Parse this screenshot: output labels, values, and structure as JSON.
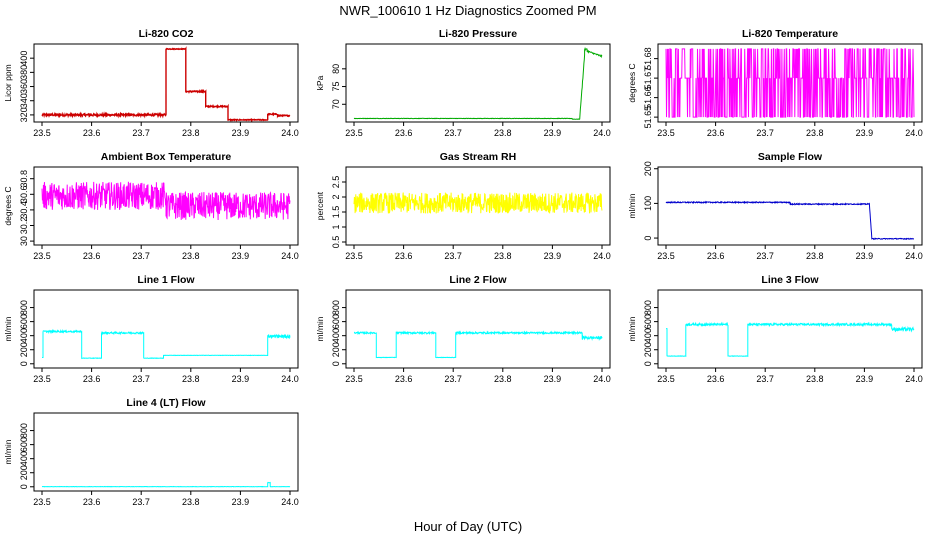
{
  "title": "NWR_100610  1 Hz Diagnostics Zoomed PM",
  "xlabel": "Hour of Day (UTC)",
  "chart_data": [
    {
      "type": "line",
      "id": "co2",
      "color": "#cc0000",
      "title": "Li-820 CO2",
      "ylabel": "Licor ppm",
      "xlim": [
        23.5,
        24.0
      ],
      "ylim": [
        310,
        420
      ],
      "xticks": [
        "23.5",
        "23.6",
        "23.7",
        "23.8",
        "23.9",
        "24.0"
      ],
      "yticks": [
        320,
        340,
        360,
        380,
        400
      ],
      "segments": [
        {
          "x0": 23.5,
          "x1": 23.75,
          "y": 320,
          "noise": 1.5
        },
        {
          "x0": 23.75,
          "x1": 23.79,
          "y": 413,
          "noise": 0.5
        },
        {
          "x0": 23.79,
          "x1": 23.83,
          "y": 353,
          "noise": 1
        },
        {
          "x0": 23.83,
          "x1": 23.875,
          "y": 332,
          "noise": 0.8
        },
        {
          "x0": 23.875,
          "x1": 23.955,
          "y": 313,
          "noise": 0.6
        },
        {
          "x0": 23.955,
          "x1": 23.975,
          "y": 321,
          "noise": 0.8
        },
        {
          "x0": 23.975,
          "x1": 24.0,
          "y": 319,
          "noise": 0.8
        }
      ]
    },
    {
      "type": "line",
      "id": "pressure",
      "color": "#00aa00",
      "title": "Li-820 Pressure",
      "ylabel": "kPa",
      "xlim": [
        23.5,
        24.0
      ],
      "ylim": [
        65,
        87
      ],
      "xticks": [
        "23.5",
        "23.6",
        "23.7",
        "23.8",
        "23.9",
        "24.0"
      ],
      "yticks": [
        70,
        75,
        80
      ],
      "segments": [
        {
          "x0": 23.5,
          "x1": 23.94,
          "y": 66,
          "noise": 0.05
        },
        {
          "x0": 23.94,
          "x1": 23.955,
          "y": 65.8,
          "noise": 0.05
        },
        {
          "x0": 23.955,
          "x1": 23.965,
          "y0": 66,
          "y1": 84,
          "noise": 0.3
        },
        {
          "x0": 23.965,
          "x1": 23.97,
          "y": 85.5,
          "noise": 0.2
        },
        {
          "x0": 23.97,
          "x1": 24.0,
          "y0": 85,
          "y1": 83.5,
          "noise": 0.2
        }
      ]
    },
    {
      "type": "line",
      "id": "licor_temp",
      "color": "#ff00ff",
      "title": "Li-820 Temperature",
      "ylabel": "degrees C",
      "xlim": [
        23.5,
        24.0
      ],
      "ylim": [
        51.6475,
        51.6875
      ],
      "xticks": [
        "23.5",
        "23.6",
        "23.7",
        "23.8",
        "23.9",
        "24.0"
      ],
      "yticks": [
        51.65,
        51.66,
        51.67,
        51.68
      ],
      "levels": [
        51.65,
        51.67,
        51.685
      ]
    },
    {
      "type": "line",
      "id": "box_temp",
      "color": "#ff00ff",
      "title": "Ambient Box Temperature",
      "ylabel": "degrees C",
      "xlim": [
        23.5,
        24.0
      ],
      "ylim": [
        29.95,
        30.95
      ],
      "xticks": [
        "23.5",
        "23.6",
        "23.7",
        "23.8",
        "23.9",
        "24.0"
      ],
      "yticks": [
        30.0,
        30.2,
        30.4,
        30.6,
        30.8
      ],
      "segments": [
        {
          "x0": 23.5,
          "x1": 23.75,
          "y": 30.58,
          "noise": 0.18
        },
        {
          "x0": 23.75,
          "x1": 24.0,
          "y": 30.45,
          "noise": 0.18
        }
      ]
    },
    {
      "type": "line",
      "id": "rh",
      "color": "#ffff00",
      "title": "Gas Stream RH",
      "ylabel": "percent",
      "xlim": [
        23.5,
        24.0
      ],
      "ylim": [
        0.4,
        3.0
      ],
      "xticks": [
        "23.5",
        "23.6",
        "23.7",
        "23.8",
        "23.9",
        "24.0"
      ],
      "yticks": [
        0.5,
        1.0,
        1.5,
        2.0,
        2.5
      ],
      "segments": [
        {
          "x0": 23.5,
          "x1": 24.0,
          "y": 1.8,
          "noise": 0.35
        }
      ]
    },
    {
      "type": "line",
      "id": "sample_flow",
      "color": "#0000cc",
      "title": "Sample Flow",
      "ylabel": "ml/min",
      "xlim": [
        23.5,
        24.0
      ],
      "ylim": [
        -20,
        205
      ],
      "xticks": [
        "23.5",
        "23.6",
        "23.7",
        "23.8",
        "23.9",
        "24.0"
      ],
      "yticks": [
        0,
        100,
        200
      ],
      "segments": [
        {
          "x0": 23.5,
          "x1": 23.75,
          "y": 103,
          "noise": 1.5
        },
        {
          "x0": 23.75,
          "x1": 23.91,
          "y": 98,
          "noise": 1.5
        },
        {
          "x0": 23.91,
          "x1": 23.915,
          "y0": 98,
          "y1": 0,
          "noise": 0
        },
        {
          "x0": 23.915,
          "x1": 24.0,
          "y": -2,
          "noise": 1.2
        }
      ]
    },
    {
      "type": "line",
      "id": "line1_flow",
      "color": "#00ffff",
      "title": "Line 1 Flow",
      "ylabel": "ml/min",
      "xlim": [
        23.5,
        24.0
      ],
      "ylim": [
        -60,
        1050
      ],
      "xticks": [
        "23.5",
        "23.6",
        "23.7",
        "23.8",
        "23.9",
        "24.0"
      ],
      "yticks": [
        0,
        200,
        400,
        600,
        800
      ],
      "segments": [
        {
          "x0": 23.5,
          "x1": 23.502,
          "y": 90,
          "noise": 0
        },
        {
          "x0": 23.502,
          "x1": 23.58,
          "y": 460,
          "noise": 12
        },
        {
          "x0": 23.58,
          "x1": 23.62,
          "y": 80,
          "noise": 3
        },
        {
          "x0": 23.62,
          "x1": 23.705,
          "y": 440,
          "noise": 12
        },
        {
          "x0": 23.705,
          "x1": 23.745,
          "y": 80,
          "noise": 3
        },
        {
          "x0": 23.745,
          "x1": 23.955,
          "y": 120,
          "noise": 2
        },
        {
          "x0": 23.955,
          "x1": 24.0,
          "y": 390,
          "noise": 25
        }
      ]
    },
    {
      "type": "line",
      "id": "line2_flow",
      "color": "#00ffff",
      "title": "Line 2 Flow",
      "ylabel": "ml/min",
      "xlim": [
        23.5,
        24.0
      ],
      "ylim": [
        -60,
        1050
      ],
      "xticks": [
        "23.5",
        "23.6",
        "23.7",
        "23.8",
        "23.9",
        "24.0"
      ],
      "yticks": [
        0,
        200,
        400,
        600,
        800
      ],
      "segments": [
        {
          "x0": 23.5,
          "x1": 23.545,
          "y": 440,
          "noise": 12
        },
        {
          "x0": 23.545,
          "x1": 23.585,
          "y": 90,
          "noise": 3
        },
        {
          "x0": 23.585,
          "x1": 23.665,
          "y": 440,
          "noise": 12
        },
        {
          "x0": 23.665,
          "x1": 23.705,
          "y": 90,
          "noise": 3
        },
        {
          "x0": 23.705,
          "x1": 23.96,
          "y": 440,
          "noise": 12
        },
        {
          "x0": 23.96,
          "x1": 24.0,
          "y": 370,
          "noise": 20
        }
      ]
    },
    {
      "type": "line",
      "id": "line3_flow",
      "color": "#00ffff",
      "title": "Line 3 Flow",
      "ylabel": "ml/min",
      "xlim": [
        23.5,
        24.0
      ],
      "ylim": [
        -60,
        1050
      ],
      "xticks": [
        "23.5",
        "23.6",
        "23.7",
        "23.8",
        "23.9",
        "24.0"
      ],
      "yticks": [
        0,
        200,
        400,
        600,
        800
      ],
      "segments": [
        {
          "x0": 23.5,
          "x1": 23.502,
          "y": 500,
          "noise": 0
        },
        {
          "x0": 23.502,
          "x1": 23.54,
          "y": 110,
          "noise": 3
        },
        {
          "x0": 23.54,
          "x1": 23.625,
          "y": 560,
          "noise": 15
        },
        {
          "x0": 23.625,
          "x1": 23.665,
          "y": 110,
          "noise": 3
        },
        {
          "x0": 23.665,
          "x1": 23.955,
          "y": 560,
          "noise": 15
        },
        {
          "x0": 23.955,
          "x1": 24.0,
          "y": 490,
          "noise": 25
        }
      ]
    },
    {
      "type": "line",
      "id": "line4_flow",
      "color": "#00ffff",
      "title": "Line 4 (LT) Flow",
      "ylabel": "ml/min",
      "xlim": [
        23.5,
        24.0
      ],
      "ylim": [
        -60,
        1050
      ],
      "xticks": [
        "23.5",
        "23.6",
        "23.7",
        "23.8",
        "23.9",
        "24.0"
      ],
      "yticks": [
        0,
        200,
        400,
        600,
        800
      ],
      "segments": [
        {
          "x0": 23.5,
          "x1": 23.955,
          "y": 2,
          "noise": 2
        },
        {
          "x0": 23.955,
          "x1": 23.96,
          "y": 60,
          "noise": 5
        },
        {
          "x0": 23.96,
          "x1": 24.0,
          "y": 2,
          "noise": 2
        }
      ]
    }
  ]
}
